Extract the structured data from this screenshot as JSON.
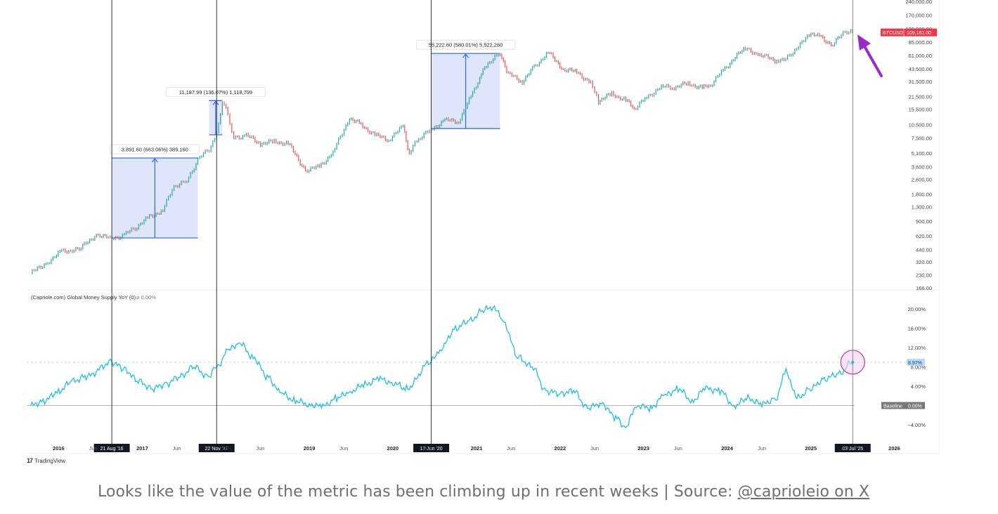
{
  "chart_data": [
    {
      "type": "line",
      "panel": "price",
      "symbol_tag": "BTCUSD",
      "last_price_label": "109,161.00",
      "yscale": "log",
      "ylim": [
        166,
        240000
      ],
      "y_ticks": [
        "240,000.00",
        "170,000.00",
        "120,000.00",
        "85,000.00",
        "61,000.00",
        "43,500.00",
        "31,500.00",
        "21,500.00",
        "15,500.00",
        "10,500.00",
        "7,500.00",
        "5,100.00",
        "3,600.00",
        "2,600.00",
        "1,800.00",
        "1,300.00",
        "900.00",
        "620.00",
        "440.00",
        "320.00",
        "230.00",
        "166.00"
      ],
      "series": [
        {
          "x": [
            "2015-09-01",
            "2015-11-15",
            "2016-01-15",
            "2016-04-01",
            "2016-06-15",
            "2016-08-21",
            "2016-10-15",
            "2016-12-01",
            "2017-02-01",
            "2017-04-01",
            "2017-05-20",
            "2017-07-15",
            "2017-09-01",
            "2017-10-20",
            "2017-11-22",
            "2017-12-17",
            "2018-01-10",
            "2018-02-05",
            "2018-04-01",
            "2018-06-01",
            "2018-08-01",
            "2018-10-01",
            "2018-12-15",
            "2019-02-15",
            "2019-04-15",
            "2019-06-26",
            "2019-08-15",
            "2019-10-15",
            "2019-12-15",
            "2020-02-15",
            "2020-03-13",
            "2020-04-15",
            "2020-06-17",
            "2020-08-15",
            "2020-10-15",
            "2020-12-15",
            "2021-01-15",
            "2021-02-20",
            "2021-04-14",
            "2021-05-20",
            "2021-07-20",
            "2021-09-10",
            "2021-11-10",
            "2022-01-15",
            "2022-03-15",
            "2022-05-15",
            "2022-06-18",
            "2022-08-15",
            "2022-10-15",
            "2022-11-21",
            "2023-01-15",
            "2023-03-20",
            "2023-05-15",
            "2023-07-15",
            "2023-09-15",
            "2023-10-20",
            "2023-12-15",
            "2024-03-14",
            "2024-05-15",
            "2024-08-05",
            "2024-10-15",
            "2024-12-17",
            "2025-02-15",
            "2025-04-07",
            "2025-05-22",
            "2025-07-03"
          ],
          "y": [
            240,
            320,
            420,
            440,
            650,
            575,
            640,
            760,
            1000,
            1200,
            2200,
            2500,
            4300,
            5700,
            8100,
            19000,
            13500,
            7500,
            8000,
            6500,
            6800,
            6500,
            3300,
            3600,
            5200,
            12500,
            10500,
            8000,
            7200,
            10000,
            5000,
            7000,
            9300,
            11700,
            11500,
            23000,
            35000,
            50000,
            63500,
            38000,
            31500,
            45000,
            66000,
            43000,
            40000,
            30000,
            19000,
            23000,
            19500,
            15700,
            21000,
            27500,
            27000,
            30000,
            26500,
            28500,
            42000,
            72000,
            63000,
            53000,
            62000,
            106000,
            97000,
            78000,
            111000,
            109161
          ]
        }
      ],
      "annotations": [
        {
          "label": "3,891.60 (663.06%) 389,160",
          "from": [
            "2016-08-21",
            590
          ],
          "to": [
            "2017-09-01",
            4500
          ]
        },
        {
          "label": "11,187.99 (136.07%) 1,118,799",
          "from": [
            "2017-10-20",
            8100
          ],
          "to": [
            "2017-12-17",
            19300
          ]
        },
        {
          "label": "55,222.60 (580.01%) 5,522,260",
          "from": [
            "2020-06-17",
            9500
          ],
          "to": [
            "2021-04-14",
            64000
          ]
        }
      ]
    },
    {
      "type": "line",
      "panel": "indicator",
      "title": "(Capriole.com) Global Money Supply YoY (0)",
      "title_suffix": "⌀  0.00%",
      "ylim": [
        -5,
        22
      ],
      "y_ticks": [
        "20.00%",
        "16.00%",
        "12.00%",
        "8.00%",
        "4.00%",
        "0.00%",
        "−4.00%"
      ],
      "baseline_label": "Baseline",
      "baseline_value_label": "0.00%",
      "last_value_label": "8.97%",
      "series": [
        {
          "x": [
            "2015-09-01",
            "2015-11-01",
            "2016-01-01",
            "2016-03-01",
            "2016-05-01",
            "2016-08-21",
            "2016-10-15",
            "2016-12-15",
            "2017-02-15",
            "2017-04-15",
            "2017-06-15",
            "2017-08-15",
            "2017-10-15",
            "2017-11-22",
            "2018-01-15",
            "2018-03-01",
            "2018-05-01",
            "2018-07-01",
            "2018-09-01",
            "2018-11-01",
            "2019-01-01",
            "2019-03-01",
            "2019-05-01",
            "2019-07-01",
            "2019-09-01",
            "2019-11-01",
            "2020-01-01",
            "2020-03-01",
            "2020-06-17",
            "2020-08-01",
            "2020-10-01",
            "2020-12-01",
            "2021-02-01",
            "2021-03-20",
            "2021-05-01",
            "2021-07-01",
            "2021-09-01",
            "2021-11-01",
            "2022-01-01",
            "2022-03-01",
            "2022-05-01",
            "2022-07-01",
            "2022-09-01",
            "2022-10-15",
            "2022-12-01",
            "2023-02-01",
            "2023-04-01",
            "2023-06-01",
            "2023-08-01",
            "2023-10-01",
            "2023-12-01",
            "2024-02-01",
            "2024-04-01",
            "2024-06-01",
            "2024-08-01",
            "2024-09-15",
            "2024-11-01",
            "2025-01-01",
            "2025-03-01",
            "2025-05-01",
            "2025-07-03"
          ],
          "y": [
            0,
            1,
            3,
            5,
            6,
            9,
            7.5,
            5,
            3.5,
            4.5,
            6,
            8,
            6,
            8,
            11.5,
            13,
            10,
            6,
            2.5,
            1,
            0.2,
            -0.2,
            1.5,
            3,
            4.3,
            5.5,
            4.7,
            3.5,
            9.2,
            12,
            16,
            17.5,
            19.8,
            20.5,
            17,
            10,
            8,
            3,
            2.5,
            3,
            -0.5,
            0.5,
            -2.5,
            -4.5,
            0,
            -0.5,
            2,
            3.5,
            1,
            3.5,
            3,
            0,
            1.5,
            0.2,
            1.5,
            7,
            1.5,
            3.5,
            5.5,
            6.5,
            8.97
          ]
        }
      ],
      "highlight_point": [
        "2025-07-03",
        8.97
      ]
    }
  ],
  "x_axis_labels": [
    "2016",
    "Jun",
    "2017",
    "Jun",
    "2018",
    "Jun",
    "2019",
    "Jun",
    "2020",
    "Jun",
    "2021",
    "Jun",
    "2022",
    "Jun",
    "2023",
    "Jun",
    "2024",
    "Jun",
    "2025",
    "Jun",
    "2026"
  ],
  "cursor_dates": [
    {
      "label": "21 Aug '16",
      "date": "2016-08-21"
    },
    {
      "label": "22 Nov '17",
      "date": "2017-11-22"
    },
    {
      "label": "17 Jun '20",
      "date": "2020-06-17"
    },
    {
      "label": "03 Jul '25",
      "date": "2025-07-03"
    }
  ],
  "colors": {
    "price_up": "#26a69a",
    "price_down": "#ef5350",
    "indicator": "#20bde6",
    "annotation": "#3a6fe8",
    "annotation_fill": "#dbe3fb",
    "btc_tag": "#f23645",
    "arrow": "#9b2bc9",
    "highlight_circle": "#b13ab0"
  },
  "branding": "TradingView",
  "caption": {
    "text": "Looks like the value of the metric has been climbing up in recent weeks | Source: ",
    "link_text": "@caprioleio on X"
  }
}
